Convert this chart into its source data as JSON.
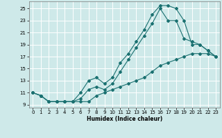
{
  "xlabel": "Humidex (Indice chaleur)",
  "bg_color": "#cee9e9",
  "grid_color": "#ffffff",
  "line_color": "#1a7070",
  "xlim": [
    -0.5,
    23.5
  ],
  "ylim": [
    8.5,
    26.2
  ],
  "xticks": [
    0,
    1,
    2,
    3,
    4,
    5,
    6,
    7,
    8,
    9,
    10,
    11,
    12,
    13,
    14,
    15,
    16,
    17,
    18,
    19,
    20,
    21,
    22,
    23
  ],
  "yticks": [
    9,
    11,
    13,
    15,
    17,
    19,
    21,
    23,
    25
  ],
  "curve1_x": [
    0,
    1,
    2,
    3,
    4,
    5,
    6,
    7,
    8,
    9,
    10,
    11,
    12,
    13,
    14,
    15,
    16,
    17,
    18,
    19,
    20,
    21,
    22,
    23
  ],
  "curve1_y": [
    11,
    10.5,
    9.5,
    9.5,
    9.5,
    9.5,
    11.0,
    13.0,
    13.5,
    12.5,
    13.5,
    16.0,
    17.5,
    19.5,
    21.5,
    24.0,
    25.5,
    25.5,
    25.0,
    23.0,
    19.0,
    19.0,
    18.0,
    17.0
  ],
  "curve2_x": [
    0,
    1,
    2,
    3,
    4,
    5,
    6,
    7,
    8,
    9,
    10,
    11,
    12,
    13,
    14,
    15,
    16,
    17,
    18,
    19,
    20,
    21,
    22,
    23
  ],
  "curve2_y": [
    11,
    10.5,
    9.5,
    9.5,
    9.5,
    9.5,
    10.0,
    11.5,
    12.0,
    11.5,
    12.5,
    14.5,
    16.5,
    18.5,
    20.5,
    22.5,
    25.0,
    23.0,
    23.0,
    20.0,
    19.5,
    19.0,
    18.0,
    17.0
  ],
  "curve3_x": [
    0,
    1,
    2,
    3,
    4,
    5,
    6,
    7,
    8,
    9,
    10,
    11,
    12,
    13,
    14,
    15,
    16,
    17,
    18,
    19,
    20,
    21,
    22,
    23
  ],
  "curve3_y": [
    11,
    10.5,
    9.5,
    9.5,
    9.5,
    9.5,
    9.5,
    9.5,
    10.5,
    11.0,
    11.5,
    12.0,
    12.5,
    13.0,
    13.5,
    14.5,
    15.5,
    16.0,
    16.5,
    17.0,
    17.5,
    17.5,
    17.5,
    17.0
  ]
}
